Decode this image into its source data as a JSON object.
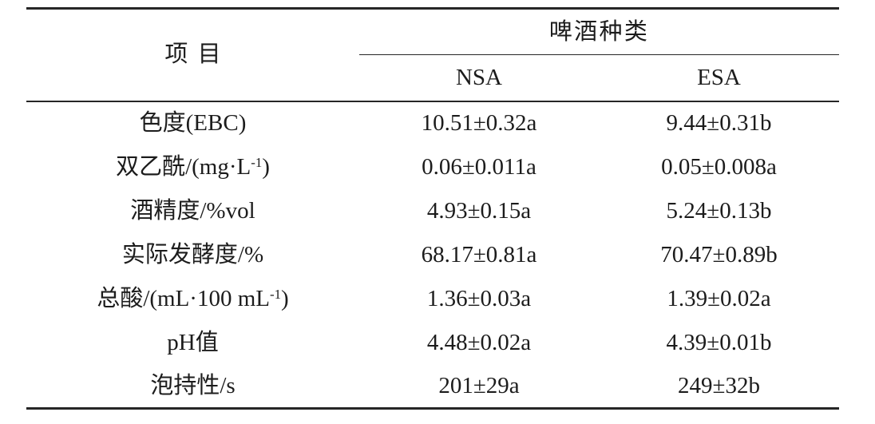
{
  "theme": {
    "text": "#1c1c1c",
    "rule": "#262626",
    "background": "#ffffff"
  },
  "table": {
    "item_header": "项目",
    "group_header": "啤酒种类",
    "columns": [
      "NSA",
      "ESA"
    ],
    "rows": [
      {
        "label": "色度(EBC)",
        "nsa": "10.51±0.32a",
        "esa": "9.44±0.31b"
      },
      {
        "label": "双乙酰/(mg·L",
        "label_sup": "-1",
        "label_end": ")",
        "nsa": "0.06±0.011a",
        "esa": "0.05±0.008a"
      },
      {
        "label": "酒精度/%vol",
        "nsa": "4.93±0.15a",
        "esa": "5.24±0.13b"
      },
      {
        "label": "实际发酵度/%",
        "nsa": "68.17±0.81a",
        "esa": "70.47±0.89b"
      },
      {
        "label": "总酸/(mL·100 mL",
        "label_sup": "-1",
        "label_end": ")",
        "nsa": "1.36±0.03a",
        "esa": "1.39±0.02a"
      },
      {
        "label": "pH值",
        "nsa": "4.48±0.02a",
        "esa": "4.39±0.01b"
      },
      {
        "label": "泡持性/s",
        "nsa": "201±29a",
        "esa": "249±32b"
      }
    ]
  }
}
